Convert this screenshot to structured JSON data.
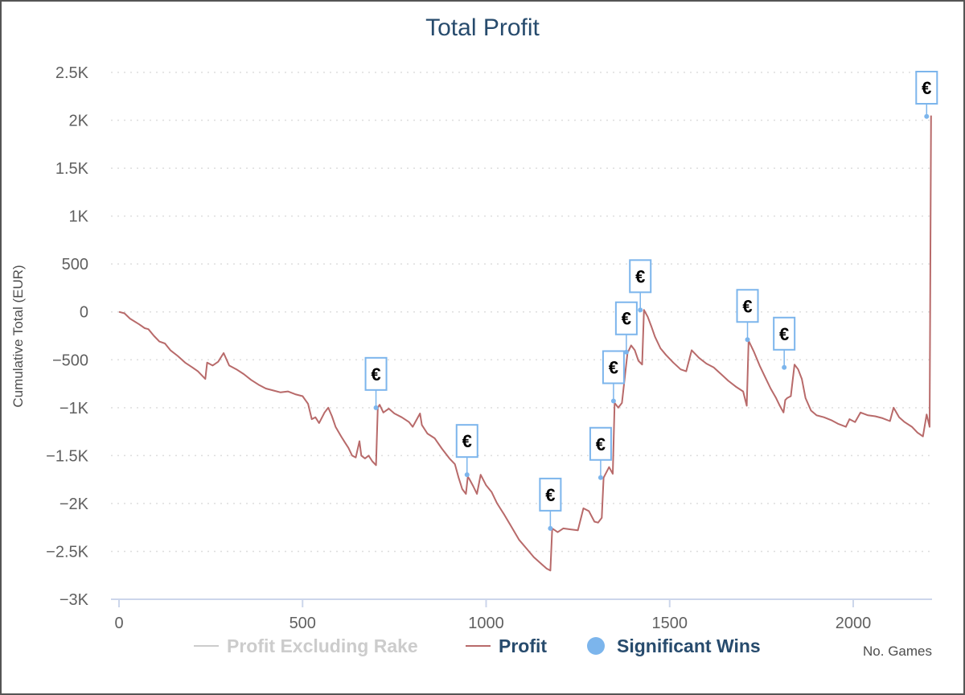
{
  "chart_data": {
    "type": "line",
    "title": "Total Profit",
    "ylabel": "Cumulative Total (EUR)",
    "xlabel": "No. Games",
    "xlim": [
      0,
      2220
    ],
    "ylim": [
      -3000,
      2500
    ],
    "x_ticks": [
      0,
      500,
      1000,
      1500,
      2000
    ],
    "x_tick_labels": [
      "0",
      "500",
      "1000",
      "1500",
      "2000"
    ],
    "y_ticks": [
      2500,
      2000,
      1500,
      1000,
      500,
      0,
      -500,
      -1000,
      -1500,
      -2000,
      -2500,
      -3000
    ],
    "y_tick_labels": [
      "2.5K",
      "2K",
      "1.5K",
      "1K",
      "500",
      "0",
      "−500",
      "−1K",
      "−1.5K",
      "−2K",
      "−2.5K",
      "−3K"
    ],
    "grid": true,
    "legend_position": "bottom",
    "legend": [
      {
        "name": "Profit Excluding Rake",
        "color": "#cccccc",
        "kind": "line",
        "text_color": "#cccccc"
      },
      {
        "name": "Profit",
        "color": "#b86a6a",
        "kind": "line",
        "text_color": "#274b6d"
      },
      {
        "name": "Significant Wins",
        "color": "#7cb5ec",
        "kind": "marker",
        "text_color": "#274b6d"
      }
    ],
    "series": [
      {
        "name": "Profit",
        "color": "#b86a6a",
        "points": [
          [
            0,
            0
          ],
          [
            15,
            -15
          ],
          [
            30,
            -70
          ],
          [
            55,
            -130
          ],
          [
            70,
            -170
          ],
          [
            80,
            -180
          ],
          [
            95,
            -250
          ],
          [
            110,
            -310
          ],
          [
            125,
            -330
          ],
          [
            140,
            -400
          ],
          [
            160,
            -460
          ],
          [
            180,
            -530
          ],
          [
            200,
            -580
          ],
          [
            215,
            -620
          ],
          [
            235,
            -700
          ],
          [
            240,
            -530
          ],
          [
            255,
            -560
          ],
          [
            270,
            -520
          ],
          [
            285,
            -430
          ],
          [
            300,
            -560
          ],
          [
            320,
            -600
          ],
          [
            340,
            -650
          ],
          [
            360,
            -710
          ],
          [
            380,
            -760
          ],
          [
            400,
            -800
          ],
          [
            420,
            -820
          ],
          [
            440,
            -840
          ],
          [
            460,
            -830
          ],
          [
            480,
            -860
          ],
          [
            500,
            -880
          ],
          [
            515,
            -960
          ],
          [
            525,
            -1120
          ],
          [
            535,
            -1100
          ],
          [
            545,
            -1160
          ],
          [
            560,
            -1050
          ],
          [
            570,
            -1000
          ],
          [
            580,
            -1090
          ],
          [
            590,
            -1200
          ],
          [
            605,
            -1300
          ],
          [
            615,
            -1360
          ],
          [
            625,
            -1420
          ],
          [
            635,
            -1500
          ],
          [
            645,
            -1520
          ],
          [
            655,
            -1350
          ],
          [
            660,
            -1500
          ],
          [
            670,
            -1530
          ],
          [
            680,
            -1500
          ],
          [
            690,
            -1560
          ],
          [
            700,
            -1600
          ],
          [
            705,
            -1000
          ],
          [
            710,
            -970
          ],
          [
            720,
            -1050
          ],
          [
            735,
            -1010
          ],
          [
            750,
            -1060
          ],
          [
            770,
            -1100
          ],
          [
            790,
            -1150
          ],
          [
            800,
            -1200
          ],
          [
            820,
            -1060
          ],
          [
            825,
            -1180
          ],
          [
            840,
            -1270
          ],
          [
            860,
            -1320
          ],
          [
            880,
            -1430
          ],
          [
            900,
            -1530
          ],
          [
            915,
            -1590
          ],
          [
            925,
            -1730
          ],
          [
            935,
            -1850
          ],
          [
            945,
            -1900
          ],
          [
            950,
            -1720
          ],
          [
            955,
            -1750
          ],
          [
            965,
            -1820
          ],
          [
            975,
            -1900
          ],
          [
            985,
            -1700
          ],
          [
            1000,
            -1810
          ],
          [
            1015,
            -1880
          ],
          [
            1030,
            -2000
          ],
          [
            1050,
            -2120
          ],
          [
            1070,
            -2250
          ],
          [
            1090,
            -2380
          ],
          [
            1110,
            -2470
          ],
          [
            1130,
            -2560
          ],
          [
            1150,
            -2630
          ],
          [
            1165,
            -2680
          ],
          [
            1175,
            -2700
          ],
          [
            1180,
            -2260
          ],
          [
            1195,
            -2300
          ],
          [
            1210,
            -2260
          ],
          [
            1230,
            -2270
          ],
          [
            1250,
            -2280
          ],
          [
            1265,
            -2050
          ],
          [
            1280,
            -2080
          ],
          [
            1295,
            -2190
          ],
          [
            1305,
            -2200
          ],
          [
            1315,
            -2150
          ],
          [
            1320,
            -1730
          ],
          [
            1335,
            -1620
          ],
          [
            1345,
            -1690
          ],
          [
            1350,
            -950
          ],
          [
            1360,
            -1000
          ],
          [
            1370,
            -950
          ],
          [
            1385,
            -430
          ],
          [
            1395,
            -350
          ],
          [
            1405,
            -400
          ],
          [
            1415,
            -510
          ],
          [
            1425,
            -550
          ],
          [
            1430,
            20
          ],
          [
            1440,
            -50
          ],
          [
            1450,
            -150
          ],
          [
            1460,
            -260
          ],
          [
            1475,
            -380
          ],
          [
            1490,
            -450
          ],
          [
            1510,
            -530
          ],
          [
            1530,
            -600
          ],
          [
            1545,
            -620
          ],
          [
            1560,
            -400
          ],
          [
            1580,
            -480
          ],
          [
            1600,
            -540
          ],
          [
            1620,
            -580
          ],
          [
            1640,
            -650
          ],
          [
            1660,
            -720
          ],
          [
            1680,
            -780
          ],
          [
            1700,
            -830
          ],
          [
            1710,
            -980
          ],
          [
            1715,
            -300
          ],
          [
            1730,
            -420
          ],
          [
            1745,
            -560
          ],
          [
            1760,
            -680
          ],
          [
            1775,
            -800
          ],
          [
            1790,
            -900
          ],
          [
            1800,
            -980
          ],
          [
            1810,
            -1050
          ],
          [
            1815,
            -920
          ],
          [
            1820,
            -900
          ],
          [
            1830,
            -880
          ],
          [
            1840,
            -550
          ],
          [
            1850,
            -600
          ],
          [
            1860,
            -700
          ],
          [
            1870,
            -900
          ],
          [
            1885,
            -1030
          ],
          [
            1900,
            -1080
          ],
          [
            1920,
            -1100
          ],
          [
            1940,
            -1130
          ],
          [
            1960,
            -1170
          ],
          [
            1980,
            -1200
          ],
          [
            1990,
            -1120
          ],
          [
            2005,
            -1150
          ],
          [
            2020,
            -1050
          ],
          [
            2040,
            -1080
          ],
          [
            2060,
            -1090
          ],
          [
            2080,
            -1110
          ],
          [
            2100,
            -1140
          ],
          [
            2110,
            -1000
          ],
          [
            2125,
            -1100
          ],
          [
            2140,
            -1150
          ],
          [
            2160,
            -1200
          ],
          [
            2175,
            -1260
          ],
          [
            2190,
            -1300
          ],
          [
            2200,
            -1070
          ],
          [
            2208,
            -1200
          ],
          [
            2212,
            2050
          ]
        ]
      }
    ],
    "significant_wins": [
      {
        "x": 700,
        "y": -1000,
        "label": "€"
      },
      {
        "x": 948,
        "y": -1700,
        "label": "€"
      },
      {
        "x": 1175,
        "y": -2260,
        "label": "€"
      },
      {
        "x": 1312,
        "y": -1730,
        "label": "€"
      },
      {
        "x": 1347,
        "y": -930,
        "label": "€"
      },
      {
        "x": 1382,
        "y": -420,
        "label": "€"
      },
      {
        "x": 1420,
        "y": 20,
        "label": "€"
      },
      {
        "x": 1712,
        "y": -290,
        "label": "€"
      },
      {
        "x": 1812,
        "y": -580,
        "label": "€"
      },
      {
        "x": 2200,
        "y": 2040,
        "label": "€"
      }
    ]
  }
}
